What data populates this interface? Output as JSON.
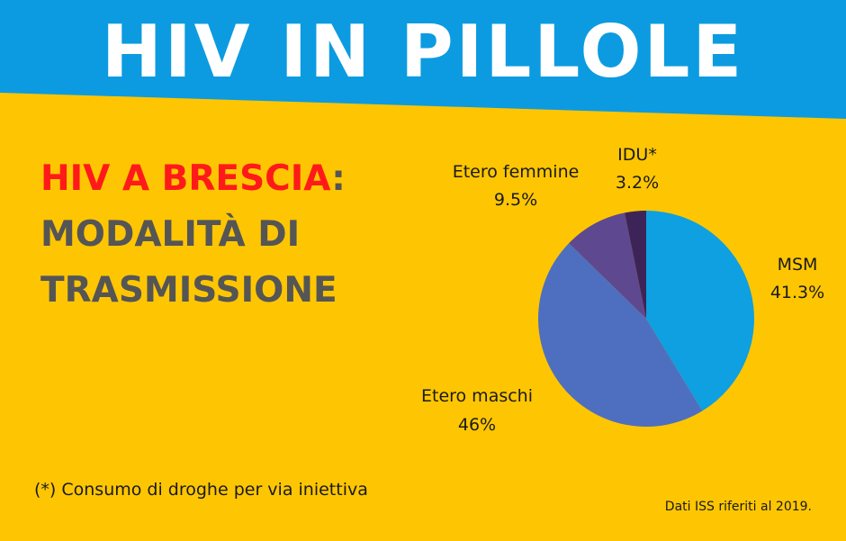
{
  "header": {
    "title": "HIV IN PILLOLE"
  },
  "subtitle": {
    "highlight": "HIV A BRESCIA",
    "colon": ":",
    "line2": "MODALITÀ DI",
    "line3": "TRASMISSIONE"
  },
  "chart_data": {
    "type": "pie",
    "slices": [
      {
        "label": "MSM",
        "value": 41.3,
        "display": "41.3%",
        "color": "#0ea0e0"
      },
      {
        "label": "Etero maschi",
        "value": 46,
        "display": "46%",
        "color": "#4e6fbf"
      },
      {
        "label": "Etero femmine",
        "value": 9.5,
        "display": "9.5%",
        "color": "#5e4890"
      },
      {
        "label": "IDU*",
        "value": 3.2,
        "display": "3.2%",
        "color": "#3d2458"
      }
    ]
  },
  "footnote": "(*) Consumo di droghe per via iniettiva",
  "source": "Dati ISS riferiti al 2019.",
  "colors": {
    "banner": "#0c9be0",
    "background": "#fec602",
    "highlight": "#ff1a1a",
    "text": "#555555"
  }
}
